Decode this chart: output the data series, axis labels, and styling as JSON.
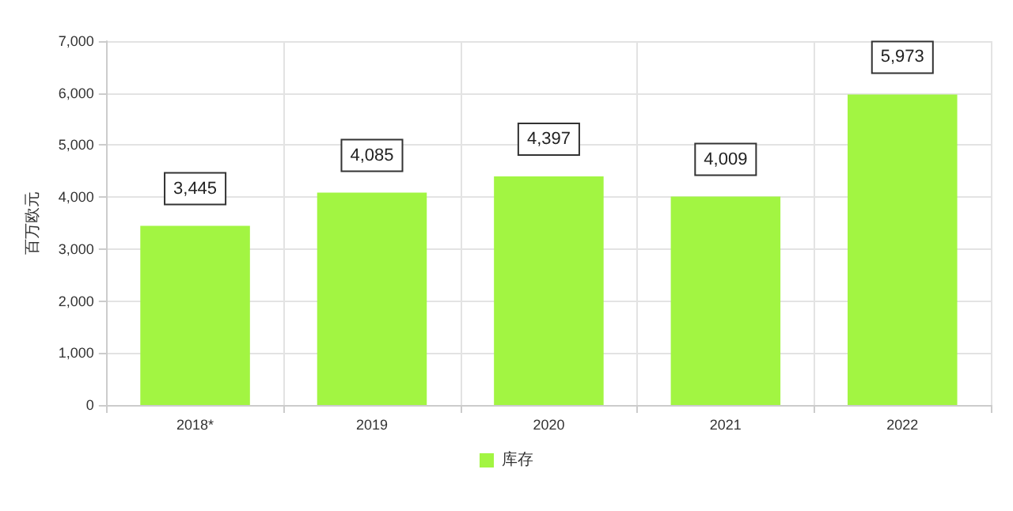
{
  "chart_data": {
    "type": "bar",
    "ylabel": "百万欧元",
    "categories": [
      "2018*",
      "2019",
      "2020",
      "2021",
      "2022"
    ],
    "series": [
      {
        "name": "库存",
        "color": "#a2f542",
        "values": [
          3445,
          4085,
          4397,
          4009,
          5973
        ],
        "value_labels": [
          "3,445",
          "4,085",
          "4,397",
          "4,009",
          "5,973"
        ]
      }
    ],
    "ylim": [
      0,
      7000
    ],
    "yticks": [
      {
        "value": 0,
        "label": "0"
      },
      {
        "value": 1000,
        "label": "1,000"
      },
      {
        "value": 2000,
        "label": "2,000"
      },
      {
        "value": 3000,
        "label": "3,000"
      },
      {
        "value": 4000,
        "label": "4,000"
      },
      {
        "value": 5000,
        "label": "5,000"
      },
      {
        "value": 6000,
        "label": "6,000"
      },
      {
        "value": 7000,
        "label": "7,000"
      }
    ],
    "grid": true,
    "legend": "bottom"
  }
}
